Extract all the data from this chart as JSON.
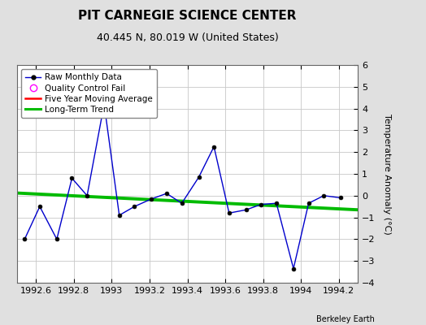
{
  "title": "PIT CARNEGIE SCIENCE CENTER",
  "subtitle": "40.445 N, 80.019 W (United States)",
  "credit": "Berkeley Earth",
  "ylabel": "Temperature Anomaly (°C)",
  "ylim": [
    -4,
    6
  ],
  "xlim": [
    1992.5,
    1994.3
  ],
  "xticks": [
    1992.6,
    1992.8,
    1993.0,
    1993.2,
    1993.4,
    1993.6,
    1993.8,
    1994.0,
    1994.2
  ],
  "yticks": [
    -4,
    -3,
    -2,
    -1,
    0,
    1,
    2,
    3,
    4,
    5,
    6
  ],
  "raw_x": [
    1992.54,
    1992.62,
    1992.71,
    1992.79,
    1992.87,
    1992.96,
    1993.04,
    1993.12,
    1993.21,
    1993.29,
    1993.37,
    1993.46,
    1993.54,
    1993.62,
    1993.71,
    1993.79,
    1993.87,
    1993.96,
    1994.04,
    1994.12,
    1994.21
  ],
  "raw_y": [
    -2.0,
    -0.5,
    -2.0,
    0.8,
    0.0,
    4.2,
    -0.9,
    -0.5,
    -0.15,
    0.1,
    -0.35,
    0.85,
    2.25,
    -0.8,
    -0.65,
    -0.4,
    -0.35,
    -3.35,
    -0.35,
    0.0,
    -0.1
  ],
  "trend_x": [
    1992.5,
    1994.3
  ],
  "trend_y": [
    0.12,
    -0.65
  ],
  "raw_color": "#0000cc",
  "trend_color": "#00bb00",
  "moving_avg_color": "#ff0000",
  "qc_color": "#ff00ff",
  "bg_color": "#e0e0e0",
  "plot_bg_color": "#ffffff",
  "grid_color": "#c8c8c8",
  "legend_labels": [
    "Raw Monthly Data",
    "Quality Control Fail",
    "Five Year Moving Average",
    "Long-Term Trend"
  ],
  "title_fontsize": 11,
  "subtitle_fontsize": 9,
  "label_fontsize": 8,
  "tick_fontsize": 8
}
